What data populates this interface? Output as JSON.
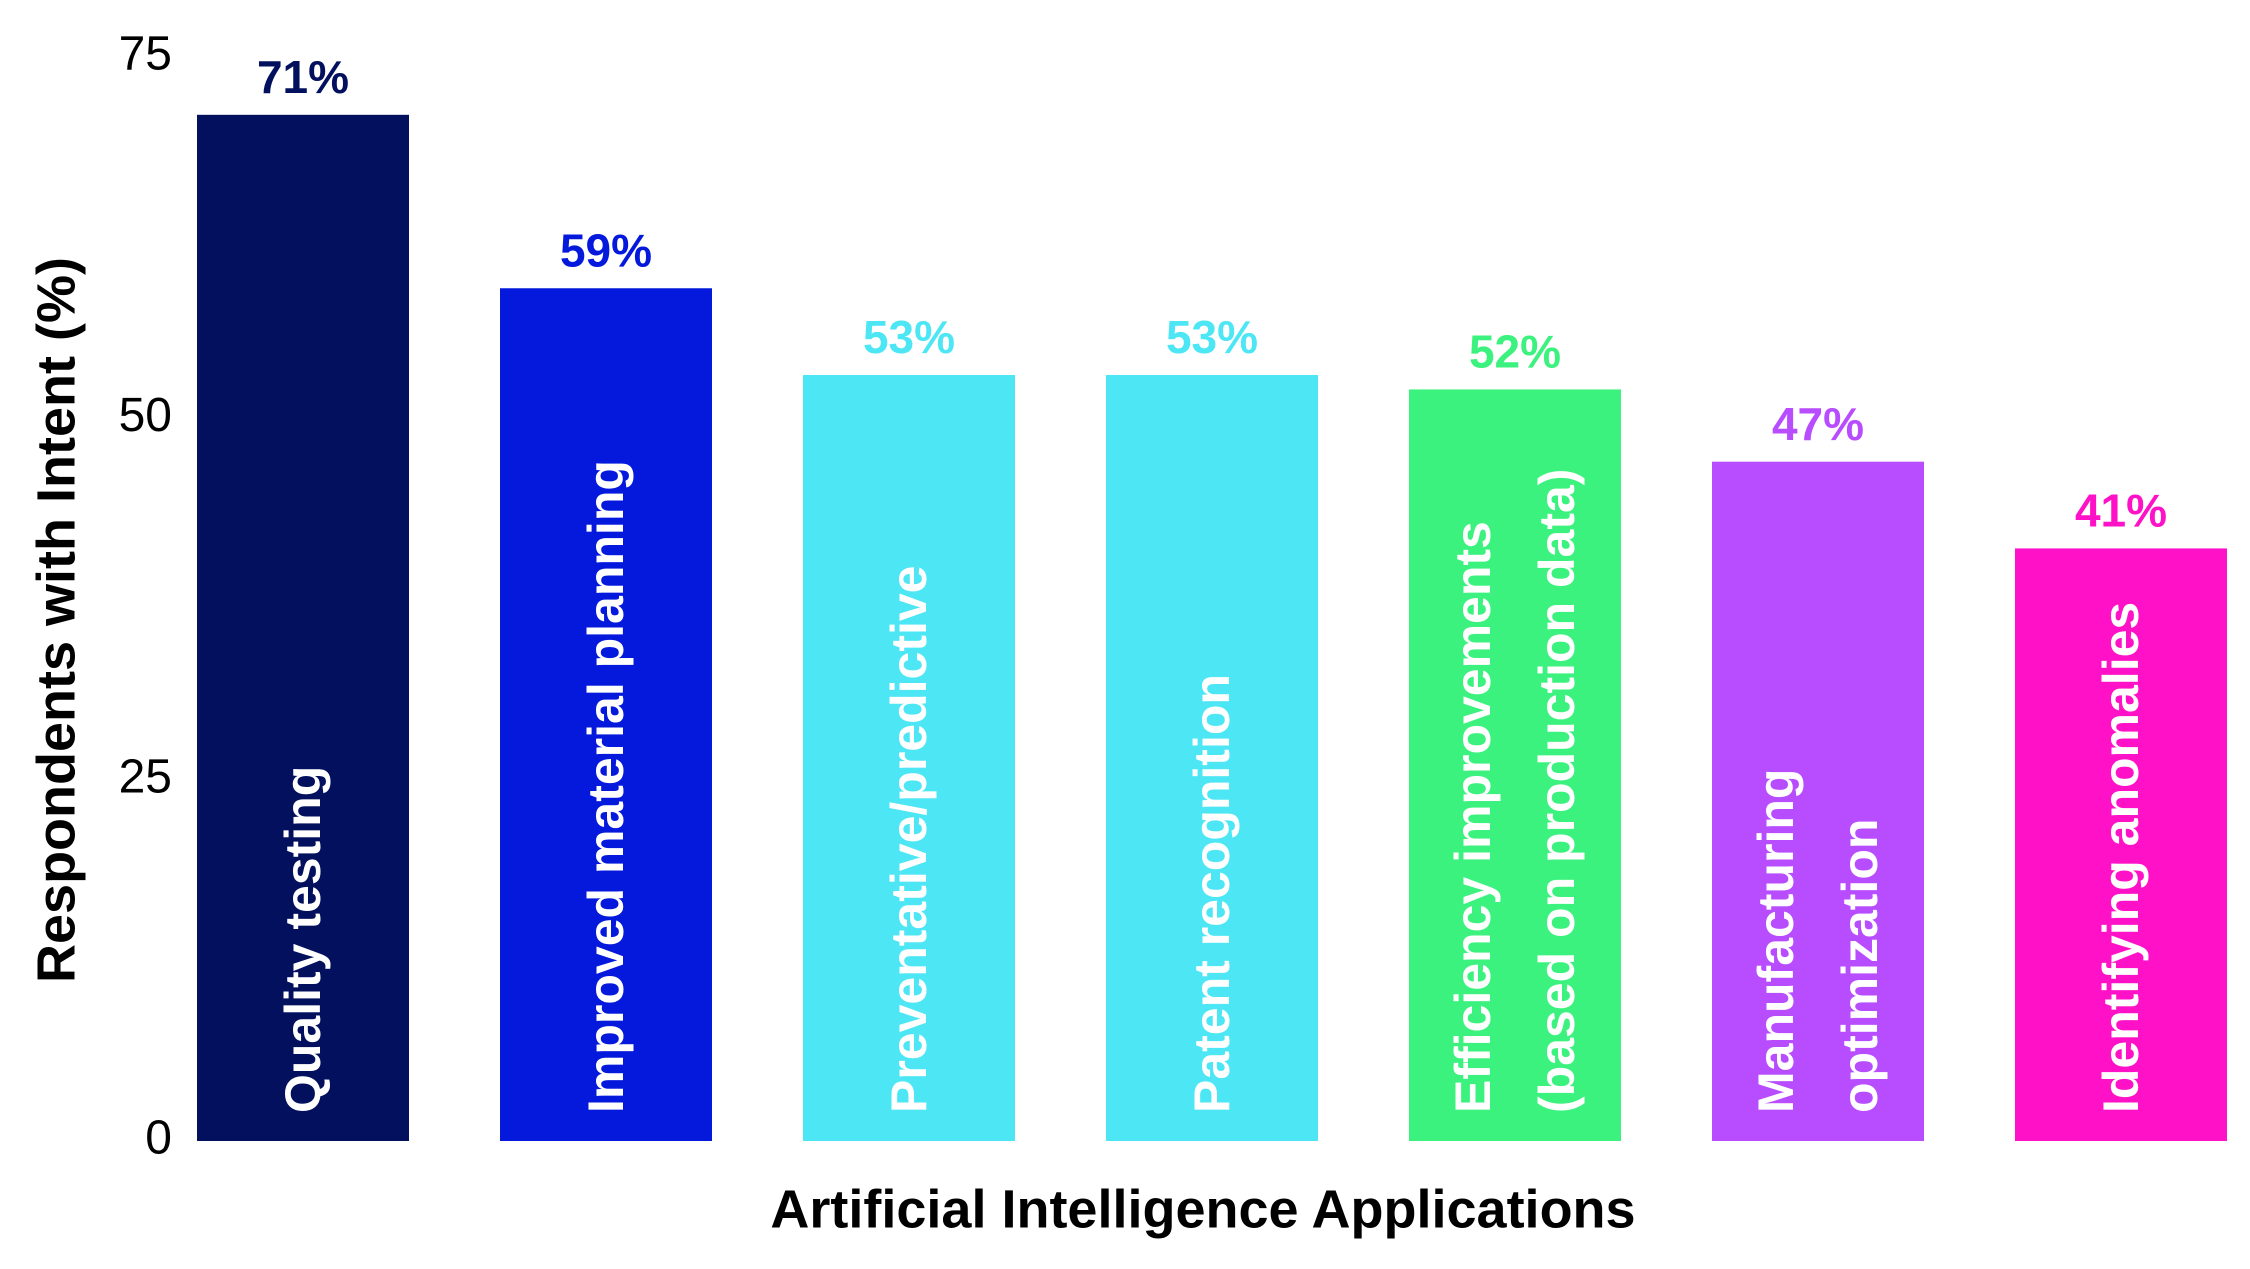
{
  "chart_data": {
    "type": "bar",
    "x_label": "Artificial Intelligence Applications",
    "y_label": "Respondents with Intent (%)",
    "categories": [
      "Quality testing",
      "Improved material planning",
      "Preventative/predictive",
      "Patent recognition",
      "Efficiency improvements\n(based on production data)",
      "Manufacturing\noptimization",
      "Identifying anomalies"
    ],
    "values": [
      71,
      59,
      53,
      53,
      52,
      47,
      41
    ],
    "value_labels": [
      "71%",
      "59%",
      "53%",
      "53%",
      "52%",
      "47%",
      "41%"
    ],
    "colors": [
      "#02105e",
      "#0419dc",
      "#4de6f5",
      "#4de6f5",
      "#3cf27e",
      "#b84cff",
      "#ff12c7"
    ],
    "ylim": [
      0,
      75
    ],
    "yticks": [
      0,
      25,
      50,
      75
    ],
    "grid": false
  }
}
